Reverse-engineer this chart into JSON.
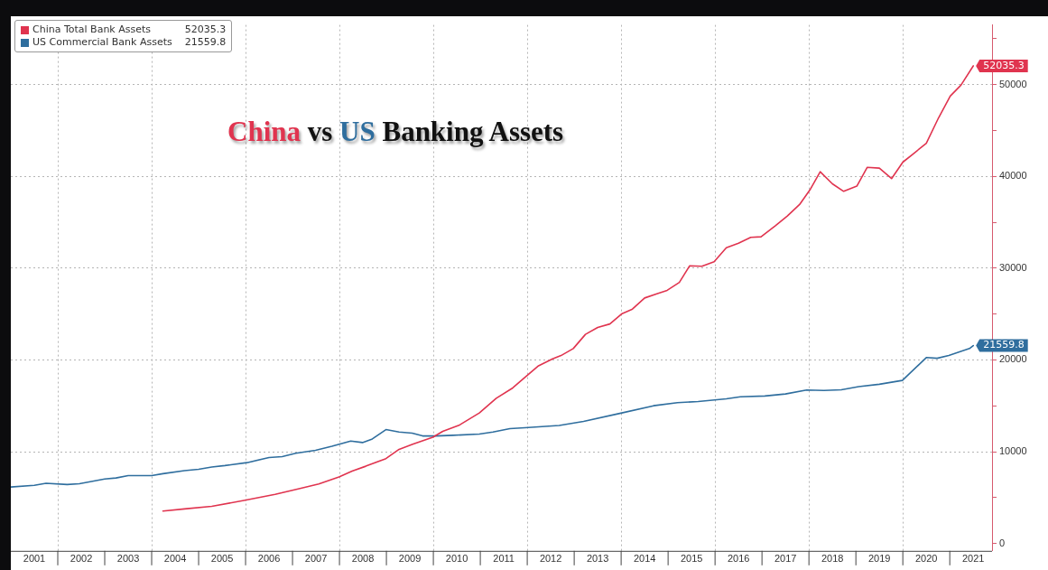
{
  "chart_data": {
    "type": "line",
    "title": "China vs US Banking Assets",
    "legend": "top left",
    "grid": true,
    "marker": "none",
    "line_style": "solid",
    "xlim": [
      2001,
      2021.9
    ],
    "xticks": [
      {
        "value": 2001.5,
        "label": "2001"
      },
      {
        "value": 2002,
        "label": null
      },
      {
        "value": 2002.5,
        "label": "2002"
      },
      {
        "value": 2003.5,
        "label": "2003"
      },
      {
        "value": 2004,
        "label": null
      },
      {
        "value": 2004.5,
        "label": "2004"
      },
      {
        "value": 2005.5,
        "label": "2005"
      },
      {
        "value": 2006,
        "label": null
      },
      {
        "value": 2006.5,
        "label": "2006"
      },
      {
        "value": 2007.5,
        "label": "2007"
      },
      {
        "value": 2008,
        "label": null
      },
      {
        "value": 2008.5,
        "label": "2008"
      },
      {
        "value": 2009.5,
        "label": "2009"
      },
      {
        "value": 2010,
        "label": null
      },
      {
        "value": 2010.5,
        "label": "2010"
      },
      {
        "value": 2011.5,
        "label": "2011"
      },
      {
        "value": 2012,
        "label": null
      },
      {
        "value": 2012.5,
        "label": "2012"
      },
      {
        "value": 2013.5,
        "label": "2013"
      },
      {
        "value": 2014,
        "label": null
      },
      {
        "value": 2014.5,
        "label": "2014"
      },
      {
        "value": 2015.5,
        "label": "2015"
      },
      {
        "value": 2016,
        "label": null
      },
      {
        "value": 2016.5,
        "label": "2016"
      },
      {
        "value": 2017.5,
        "label": "2017"
      },
      {
        "value": 2018,
        "label": null
      },
      {
        "value": 2018.5,
        "label": "2018"
      },
      {
        "value": 2019.5,
        "label": "2019"
      },
      {
        "value": 2020,
        "label": null
      },
      {
        "value": 2020.5,
        "label": "2020"
      },
      {
        "value": 2021.5,
        "label": "2021"
      }
    ],
    "ylim": [
      -800,
      56500
    ],
    "yticks": [
      0,
      {
        "value": 5000,
        "label": null
      },
      10000,
      {
        "value": 15000,
        "label": null
      },
      20000,
      {
        "value": 25000,
        "label": null
      },
      30000,
      {
        "value": 35000,
        "label": null
      },
      40000,
      {
        "value": 45000,
        "label": null
      },
      50000,
      {
        "value": 55000,
        "label": null
      }
    ],
    "series": [
      {
        "name": "China Total Bank Assets",
        "color": "#e0344f",
        "x": [
          2004.24,
          2004.7,
          2005.28,
          2005.99,
          2006.63,
          2007.12,
          2007.56,
          2007.99,
          2008.27,
          2008.56,
          2008.99,
          2009.27,
          2009.56,
          2009.99,
          2010.2,
          2010.56,
          2010.98,
          2011.34,
          2011.69,
          2011.88,
          2012.24,
          2012.54,
          2012.72,
          2012.98,
          2013.24,
          2013.5,
          2013.76,
          2014.02,
          2014.24,
          2014.5,
          2014.76,
          2014.98,
          2015.24,
          2015.46,
          2015.72,
          2015.98,
          2016.24,
          2016.5,
          2016.76,
          2016.98,
          2017.28,
          2017.54,
          2017.8,
          2018.02,
          2018.24,
          2018.5,
          2018.74,
          2019.02,
          2019.24,
          2019.5,
          2019.76,
          2020.0,
          2020.24,
          2020.5,
          2020.76,
          2021.01,
          2021.24,
          2021.5
        ],
        "values": [
          3540,
          3770,
          4050,
          4710,
          5360,
          5940,
          6490,
          7250,
          7900,
          8420,
          9250,
          10260,
          10810,
          11580,
          12220,
          12920,
          14220,
          15820,
          16950,
          17790,
          19360,
          20110,
          20480,
          21240,
          22790,
          23540,
          23920,
          25050,
          25540,
          26750,
          27200,
          27580,
          28450,
          30260,
          30210,
          30700,
          32220,
          32710,
          33350,
          33420,
          34600,
          35690,
          36930,
          38520,
          40510,
          39190,
          38370,
          38940,
          40980,
          40900,
          39760,
          41550,
          42530,
          43610,
          46370,
          48750,
          49950,
          52035.3
        ],
        "value_labels": [
          null,
          null,
          null,
          null,
          null,
          null,
          null,
          null,
          null,
          null,
          null,
          null,
          null,
          null,
          null,
          null,
          null,
          null,
          null,
          null,
          null,
          null,
          null,
          null,
          null,
          null,
          null,
          null,
          null,
          null,
          null,
          null,
          null,
          null,
          null,
          null,
          null,
          null,
          null,
          null,
          null,
          null,
          null,
          null,
          null,
          null,
          null,
          null,
          null,
          null,
          null,
          null,
          null,
          null,
          null,
          null,
          null,
          "52035.3"
        ]
      },
      {
        "name": "US Commercial Bank Assets",
        "color": "#2f6e9e",
        "x": [
          2001.0,
          2001.5,
          2001.75,
          2002.2,
          2002.46,
          2003.0,
          2003.24,
          2003.5,
          2004.0,
          2004.24,
          2004.7,
          2005.0,
          2005.28,
          2005.56,
          2006.03,
          2006.5,
          2006.78,
          2007.07,
          2007.49,
          2007.84,
          2008.24,
          2008.49,
          2008.7,
          2008.99,
          2009.27,
          2009.55,
          2009.77,
          2010.05,
          2010.42,
          2010.98,
          2011.27,
          2011.63,
          2011.95,
          2012.68,
          2013.2,
          2013.95,
          2014.69,
          2015.2,
          2015.64,
          2016.24,
          2016.54,
          2017.06,
          2017.5,
          2017.95,
          2018.32,
          2018.69,
          2019.06,
          2019.5,
          2019.99,
          2020.5,
          2020.73,
          2020.98,
          2021.42,
          2021.5
        ],
        "values": [
          6160,
          6340,
          6560,
          6430,
          6520,
          7030,
          7140,
          7400,
          7400,
          7610,
          7940,
          8090,
          8340,
          8490,
          8810,
          9370,
          9470,
          9830,
          10150,
          10600,
          11170,
          11000,
          11390,
          12410,
          12150,
          12020,
          11720,
          11720,
          11790,
          11920,
          12150,
          12510,
          12610,
          12860,
          13310,
          14150,
          15010,
          15350,
          15470,
          15760,
          15990,
          16070,
          16290,
          16730,
          16680,
          16750,
          17090,
          17350,
          17770,
          20260,
          20180,
          20480,
          21240,
          21559.8
        ],
        "value_labels": [
          null,
          null,
          null,
          null,
          null,
          null,
          null,
          null,
          null,
          null,
          null,
          null,
          null,
          null,
          null,
          null,
          null,
          null,
          null,
          null,
          null,
          null,
          null,
          null,
          null,
          null,
          null,
          null,
          null,
          null,
          null,
          null,
          null,
          null,
          null,
          null,
          null,
          null,
          null,
          null,
          null,
          null,
          null,
          null,
          null,
          null,
          null,
          null,
          null,
          null,
          null,
          null,
          null,
          "21559.8"
        ]
      }
    ]
  }
}
